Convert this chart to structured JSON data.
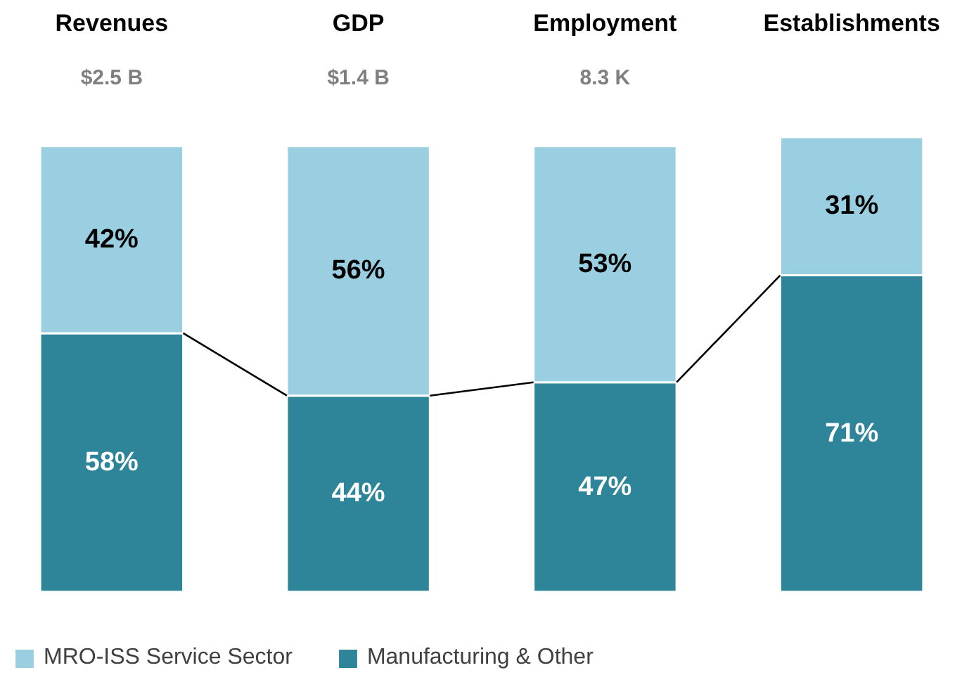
{
  "chart_data": {
    "type": "bar",
    "stacked": true,
    "categories": [
      "Revenues",
      "GDP",
      "Employment",
      "Establishments"
    ],
    "series": [
      {
        "name": "Manufacturing & Other",
        "color": "#2e8599",
        "values": [
          58,
          44,
          47,
          71
        ],
        "value_labels": [
          "58%",
          "44%",
          "47%",
          "71%"
        ]
      },
      {
        "name": "MRO-ISS Service Sector",
        "color": "#99cfe0",
        "values": [
          42,
          56,
          53,
          31
        ],
        "value_labels": [
          "42%",
          "56%",
          "53%",
          "31%"
        ]
      }
    ],
    "legend": "bottom",
    "annotations": [
      "$2.5 B",
      "$1.4 B",
      "8.3 K"
    ]
  }
}
